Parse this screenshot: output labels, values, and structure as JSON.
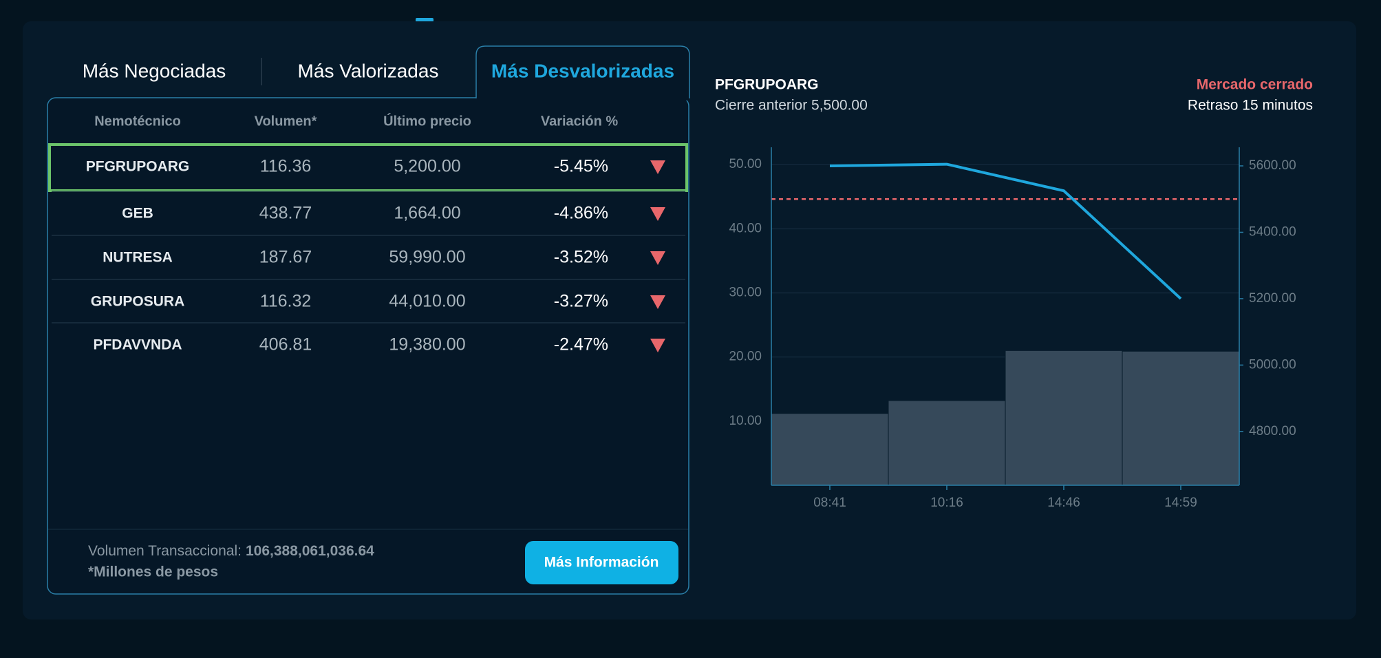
{
  "tabs": [
    "Más Negociadas",
    "Más Valorizadas",
    "Más Desvalorizadas"
  ],
  "table": {
    "headers": [
      "Nemotécnico",
      "Volumen*",
      "Último precio",
      "Variación %"
    ],
    "rows": [
      [
        "PFGRUPOARG",
        "116.36",
        "5,200.00",
        "-5.45%"
      ],
      [
        "GEB",
        "438.77",
        "1,664.00",
        "-4.86%"
      ],
      [
        "NUTRESA",
        "187.67",
        "59,990.00",
        "-3.52%"
      ],
      [
        "GRUPOSURA",
        "116.32",
        "44,010.00",
        "-3.27%"
      ],
      [
        "PFDAVVNDA",
        "406.81",
        "19,380.00",
        "-2.47%"
      ]
    ]
  },
  "footer": {
    "volume_label": "Volumen Transaccional:",
    "volume_value": "106,388,061,036.64",
    "note": "*Millones de pesos"
  },
  "button": "Más Información",
  "chart_data": {
    "type": "combo",
    "title": "PFGRUPOARG",
    "subtitle": "Cierre anterior 5,500.00",
    "status": "Mercado cerrado",
    "delay": "Retraso 15 minutos",
    "categories": [
      "08:41",
      "10:16",
      "14:46",
      "14:59"
    ],
    "series": [
      {
        "type": "bar",
        "color": "#36495a",
        "values": [
          11.2,
          13.2,
          21.0,
          20.9
        ]
      },
      {
        "type": "line",
        "color": "#1fa7dd",
        "axis": "y2",
        "values": [
          5600,
          5605,
          5525,
          5200
        ]
      }
    ],
    "reference_line": {
      "value": 5500,
      "color": "#e8676b",
      "axis": "y2"
    },
    "ylim": [
      0,
      52.7
    ],
    "yticks": [
      {
        "value": 10,
        "label": "10.00"
      },
      {
        "value": 20,
        "label": "20.00"
      },
      {
        "value": 30,
        "label": "30.00"
      },
      {
        "value": 40,
        "label": "40.00"
      },
      {
        "value": 50,
        "label": "50.00"
      }
    ],
    "y2lim": [
      4638,
      5656
    ],
    "y2ticks": [
      {
        "value": 4800,
        "label": "4800.00"
      },
      {
        "value": 5000,
        "label": "5000.00"
      },
      {
        "value": 5200,
        "label": "5200.00"
      },
      {
        "value": 5400,
        "label": "5400.00"
      },
      {
        "value": 5600,
        "label": "5600.00"
      }
    ],
    "grid": true
  }
}
